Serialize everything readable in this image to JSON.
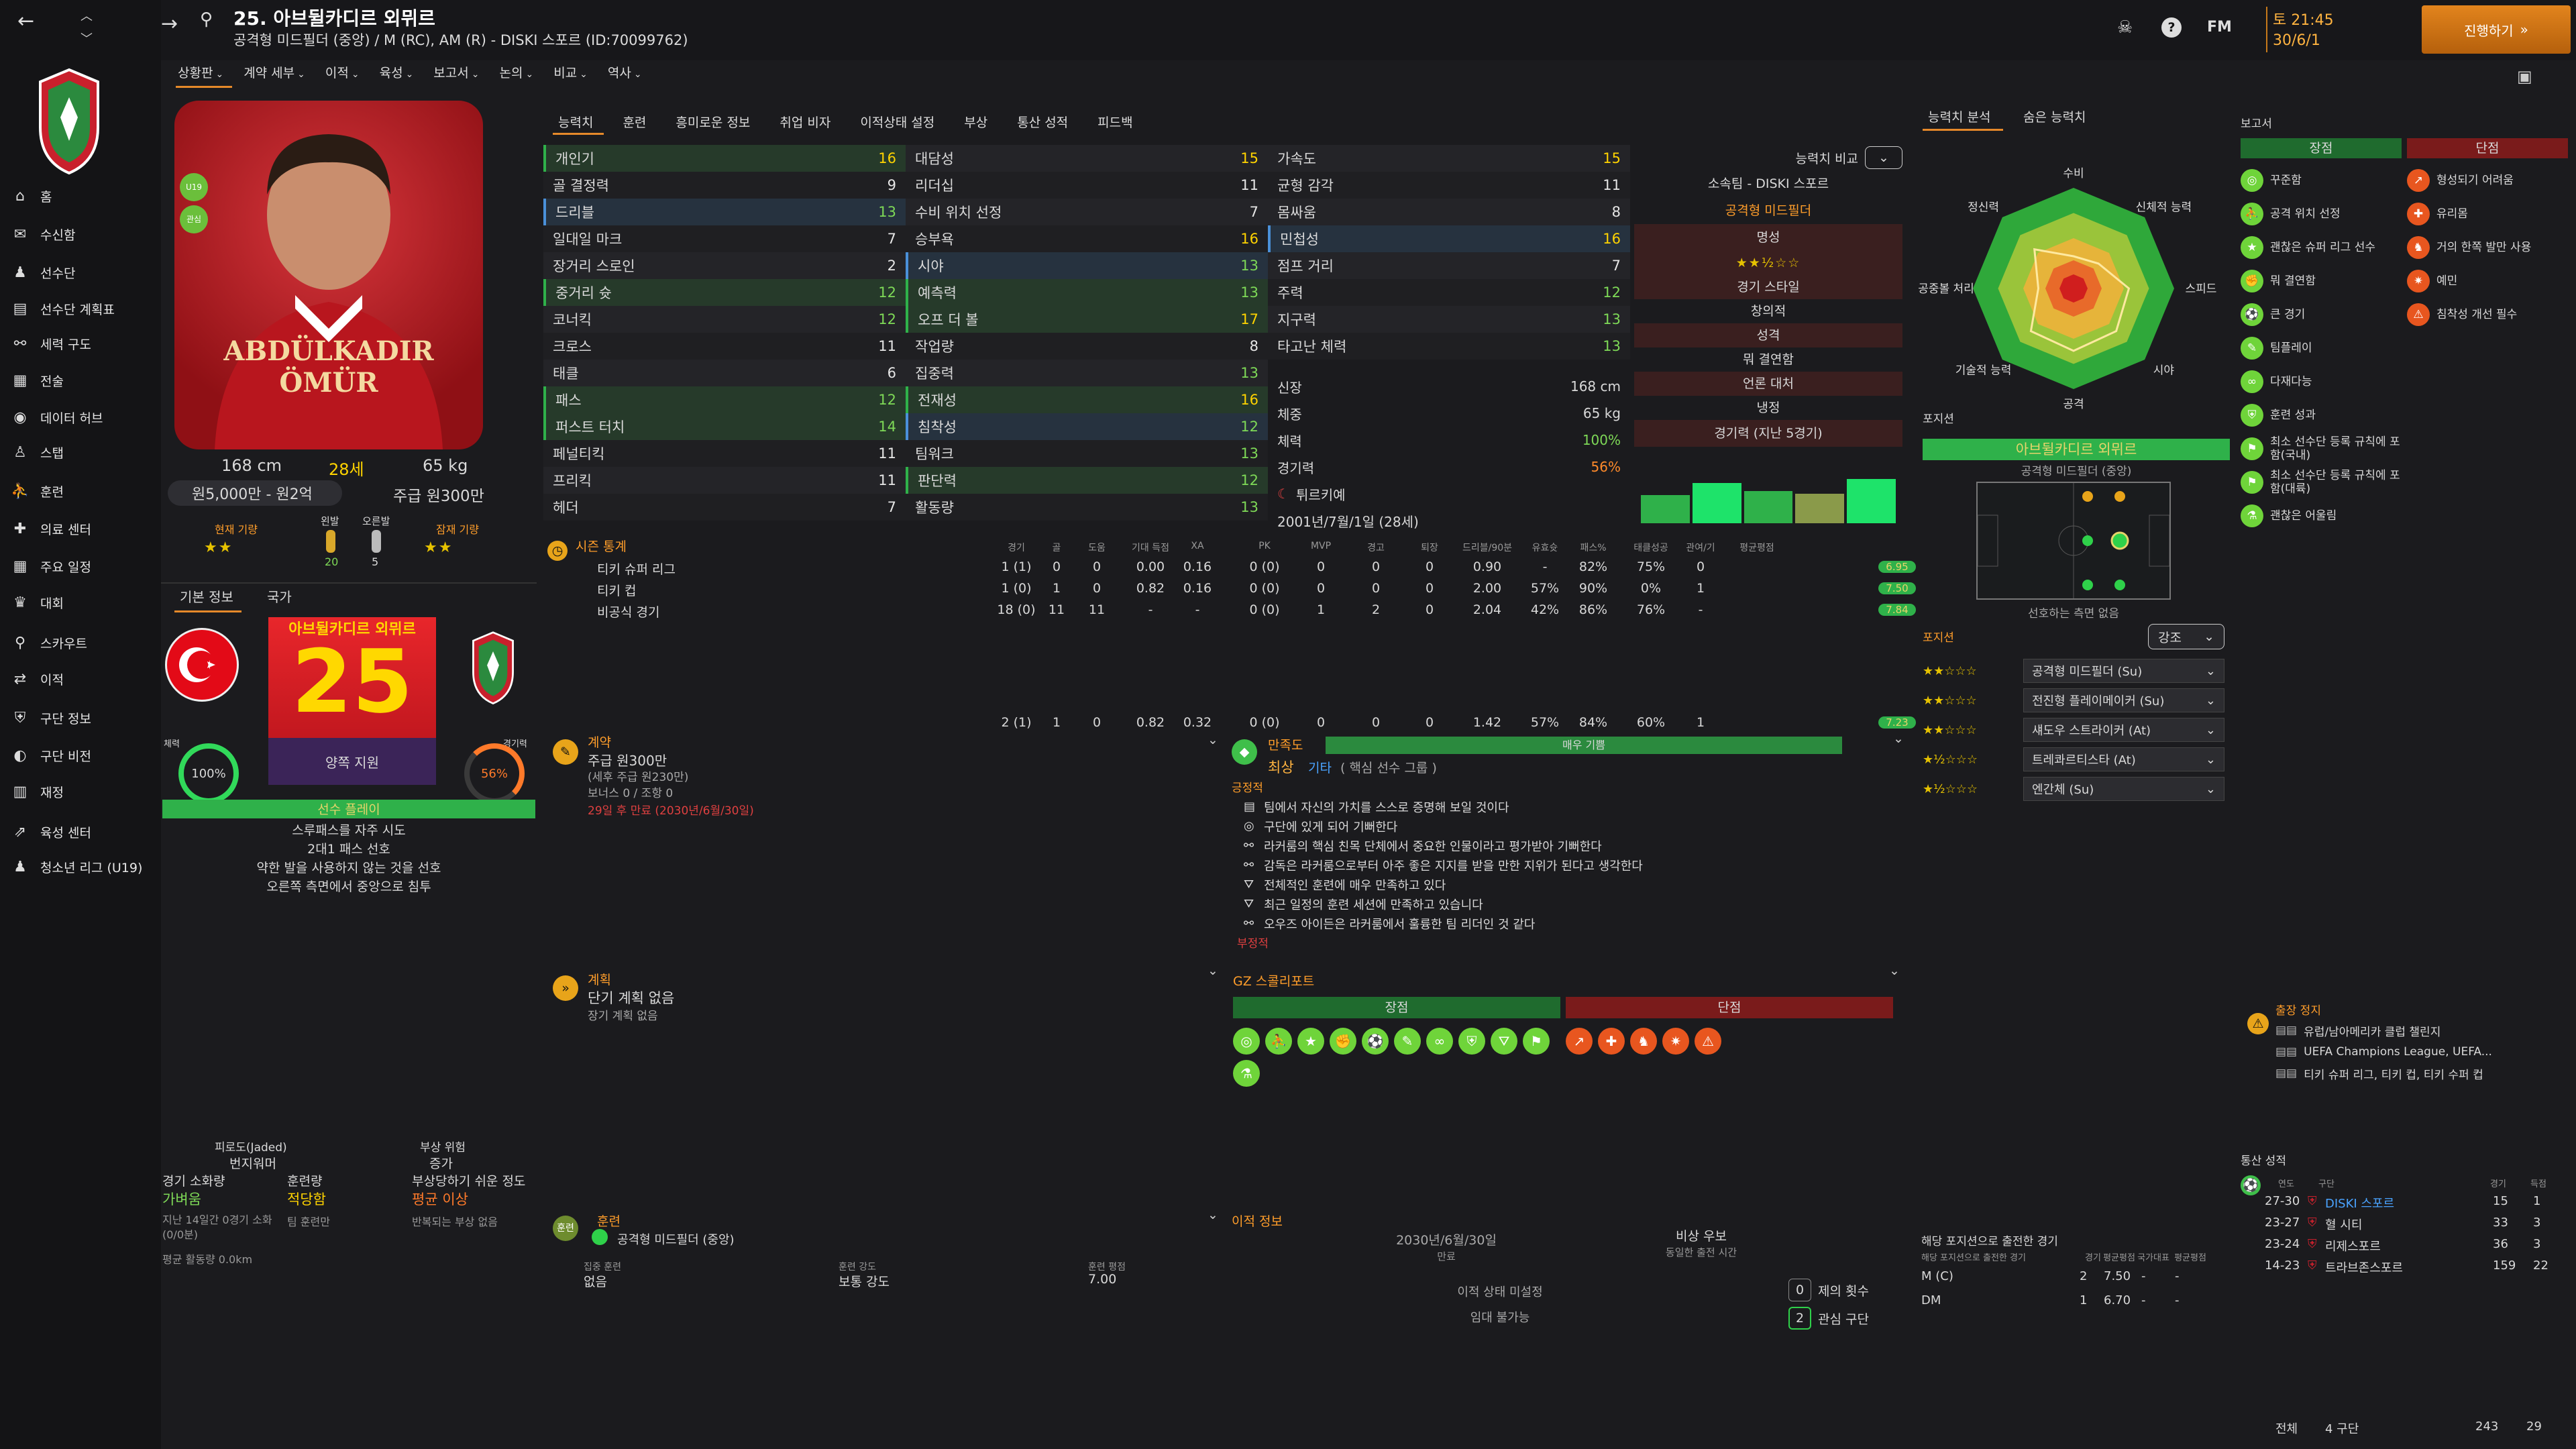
{
  "header": {
    "player_title": "25. 아브뒬카디르 외뮈르",
    "player_subtitle": "공격형 미드필더 (중앙) / M (RC), AM (R) - DISKI 스포르 (ID:70099762)",
    "date_line1": "토 21:45",
    "date_line2": "30/6/1",
    "continue_label": "진행하기",
    "fm_label": "FM"
  },
  "subnav": [
    "상황판",
    "계약 세부",
    "이적",
    "육성",
    "보고서",
    "논의",
    "비교",
    "역사"
  ],
  "nav": [
    {
      "label": "홈",
      "icon": "home-icon"
    },
    {
      "label": "수신함",
      "icon": "inbox-icon"
    },
    {
      "label": "선수단",
      "icon": "squad-icon"
    },
    {
      "label": "선수단 계획표",
      "icon": "plan-icon"
    },
    {
      "label": "세력 구도",
      "icon": "dynamics-icon"
    },
    {
      "label": "전술",
      "icon": "tactics-icon"
    },
    {
      "label": "데이터 허브",
      "icon": "data-icon"
    },
    {
      "label": "스탭",
      "icon": "staff-icon"
    },
    {
      "label": "훈련",
      "icon": "training-icon"
    },
    {
      "label": "의료 센터",
      "icon": "medical-icon"
    },
    {
      "label": "주요 일정",
      "icon": "calendar-icon"
    },
    {
      "label": "대회",
      "icon": "trophy-icon"
    },
    {
      "label": "스카우트",
      "icon": "scout-icon"
    },
    {
      "label": "이적",
      "icon": "transfer-icon"
    },
    {
      "label": "구단 정보",
      "icon": "club-icon"
    },
    {
      "label": "구단 비전",
      "icon": "vision-icon"
    },
    {
      "label": "재정",
      "icon": "finance-icon"
    },
    {
      "label": "육성 센터",
      "icon": "dev-icon"
    },
    {
      "label": "청소년 리그 (U19)",
      "icon": "youth-icon"
    }
  ],
  "profile": {
    "shirt_name": "ABDÜLKADIR ÖMÜR",
    "height": "168 cm",
    "age": "28세",
    "weight": "65 kg",
    "value": "원5,000만 - 원2억",
    "wage": "주급 원300만",
    "current_ability": "현재 기량",
    "potential_ability": "잠재 기량",
    "left_foot": "왼발",
    "right_foot": "오른발",
    "left_foot_val": "20",
    "right_foot_val": "5",
    "badge1": "U19",
    "badge2": "관심"
  },
  "info_tabs": [
    "기본 정보",
    "국가"
  ],
  "card": {
    "name": "아브뒬카디르 외뮈르",
    "number": "25",
    "role": "양쪽 지원",
    "fitness_label": "체력",
    "fitness": "100%",
    "match_label": "경기력",
    "match": "56%",
    "status": "선수 플레이",
    "traits": [
      "스루패스를 자주 시도",
      "2대1 패스 선호",
      "약한 발을 사용하지 않는 것을 선호",
      "오른쪽 측면에서 중앙으로 침투"
    ]
  },
  "left_bottom": {
    "c1_label": "피로도(Jaded)",
    "c1_value": "번지워머",
    "c2_label": "부상 위험",
    "c2_value": "증가",
    "r1": "경기 소화량",
    "r1v": "가벼움",
    "r2": "훈련량",
    "r2v": "적당함",
    "r3": "부상당하기 쉬운 정도",
    "r3v": "평균 이상",
    "n1": "지난 14일간 0경기 소화(0/0분)",
    "n2": "팀 훈련만",
    "n3": "반복되는 부상 없음",
    "n4": "평균 활동량 0.0km"
  },
  "attr_tabs": [
    "능력치",
    "훈련",
    "흥미로운 정보",
    "취업 비자",
    "이적상태 설정",
    "부상",
    "통산 성적",
    "피드백"
  ],
  "attrs_col1": [
    {
      "n": "개인기",
      "v": "16",
      "hl": "g"
    },
    {
      "n": "골 결정력",
      "v": "9"
    },
    {
      "n": "드리블",
      "v": "13",
      "hl": "b"
    },
    {
      "n": "일대일 마크",
      "v": "7"
    },
    {
      "n": "장거리 스로인",
      "v": "2"
    },
    {
      "n": "중거리 슛",
      "v": "12",
      "hl": "g"
    },
    {
      "n": "코너킥",
      "v": "12"
    },
    {
      "n": "크로스",
      "v": "11"
    },
    {
      "n": "태클",
      "v": "6"
    },
    {
      "n": "패스",
      "v": "12",
      "hl": "g"
    },
    {
      "n": "퍼스트 터치",
      "v": "14",
      "hl": "g"
    },
    {
      "n": "페널티킥",
      "v": "11"
    },
    {
      "n": "프리킥",
      "v": "11"
    },
    {
      "n": "헤더",
      "v": "7"
    }
  ],
  "attrs_col2": [
    {
      "n": "대담성",
      "v": "15"
    },
    {
      "n": "리더십",
      "v": "11"
    },
    {
      "n": "수비 위치 선정",
      "v": "7"
    },
    {
      "n": "승부욕",
      "v": "16"
    },
    {
      "n": "시야",
      "v": "13",
      "hl": "b"
    },
    {
      "n": "예측력",
      "v": "13",
      "hl": "g"
    },
    {
      "n": "오프 더 볼",
      "v": "17",
      "hl": "g"
    },
    {
      "n": "작업량",
      "v": "8"
    },
    {
      "n": "집중력",
      "v": "13"
    },
    {
      "n": "전재성",
      "v": "16",
      "hl": "g"
    },
    {
      "n": "침착성",
      "v": "12",
      "hl": "b"
    },
    {
      "n": "팀워크",
      "v": "13"
    },
    {
      "n": "판단력",
      "v": "12",
      "hl": "g"
    },
    {
      "n": "활동량",
      "v": "13"
    }
  ],
  "attrs_col3": [
    {
      "n": "가속도",
      "v": "15"
    },
    {
      "n": "균형 감각",
      "v": "11"
    },
    {
      "n": "몸싸움",
      "v": "8"
    },
    {
      "n": "민첩성",
      "v": "16",
      "hl": "b"
    },
    {
      "n": "점프 거리",
      "v": "7"
    },
    {
      "n": "주력",
      "v": "12"
    },
    {
      "n": "지구력",
      "v": "13"
    },
    {
      "n": "타고난 체력",
      "v": "13"
    }
  ],
  "bio": {
    "r1": "신장",
    "r1v": "168 cm",
    "r2": "체중",
    "r2v": "65 kg",
    "r3": "체력",
    "r3v": "100%",
    "r4": "경기력",
    "r4v": "56%",
    "nation": "튀르키예",
    "dob": "2001년/7월/1일 (28세)",
    "truncated": "..."
  },
  "compare": {
    "label": "능력치 비교",
    "club": "소속팀 - DISKI 스포르",
    "role": "공격형 미드필더",
    "fame": "명성",
    "style": "경기 스타일",
    "style_v": "창의적",
    "pers": "성격",
    "pers_v": "뭐 결연함",
    "media": "언론 대처",
    "media_v": "냉정",
    "form": "경기력 (지난 5경기)"
  },
  "season": {
    "title": "시즌 통계",
    "headers": [
      "경기",
      "골",
      "도움",
      "기대 득점",
      "XA",
      "PK",
      "MVP",
      "경고",
      "퇴장",
      "드리블/90분",
      "유효슛",
      "패스%",
      "태클성공",
      "관여/기",
      "평균평점"
    ],
    "rows": [
      {
        "comp": "티키 슈퍼 리그",
        "vals": [
          "1 (1)",
          "0",
          "0",
          "0.00",
          "0.16",
          "0 (0)",
          "0",
          "0",
          "0",
          "0.90",
          "-",
          "82%",
          "75%",
          "0"
        ],
        "rating": "6.95"
      },
      {
        "comp": "티키 컵",
        "vals": [
          "1 (0)",
          "1",
          "0",
          "0.82",
          "0.16",
          "0 (0)",
          "0",
          "0",
          "0",
          "2.00",
          "57%",
          "90%",
          "0%",
          "1"
        ],
        "rating": "7.50"
      },
      {
        "comp": "비공식 경기",
        "vals": [
          "18 (0)",
          "11",
          "11",
          "-",
          "-",
          "0 (0)",
          "1",
          "2",
          "0",
          "2.04",
          "42%",
          "86%",
          "76%",
          "-"
        ],
        "rating": "7.84"
      }
    ],
    "total": {
      "vals": [
        "2 (1)",
        "1",
        "0",
        "0.82",
        "0.32",
        "0 (0)",
        "0",
        "0",
        "0",
        "1.42",
        "57%",
        "84%",
        "60%",
        "1"
      ],
      "rating": "7.23"
    }
  },
  "contract": {
    "title": "계약",
    "wage": "주급 원300만",
    "wage_sub": "(세후 주급 원230만)",
    "bonus": "보너스 0 / 조항 0",
    "expiry": "29일 후 만료 (2030년/6월/30일)"
  },
  "happiness": {
    "title": "만족도",
    "bar_label": "매우 기쁨",
    "level": "최상",
    "role": "기타",
    "role_detail": "( 핵심 선수 그룹 )",
    "pos_label": "긍정적",
    "items": [
      "팀에서 자신의 가치를 스스로 증명해 보일 것이다",
      "구단에 있게 되어 기뻐한다",
      "라커룸의 핵심 친목 단체에서 중요한 인물이라고 평가받아 기뻐한다",
      "감독은 라커룸으로부터 아주 좋은 지지를 받을 만한 지위가 된다고 생각한다",
      "전체적인 훈련에 매우 만족하고 있다",
      "최근 일정의 훈련 세션에 만족하고 있습니다",
      "오우즈 아이든은 라커룸에서 훌륭한 팀 리더인 것 같다"
    ],
    "neg_label": "부정적"
  },
  "plans": {
    "title": "계획",
    "short": "단기 계획 없음",
    "long": "장기 계획 없음"
  },
  "scout": {
    "title": "GZ 스콜리포트",
    "pros": "장점",
    "cons": "단점"
  },
  "training": {
    "title": "훈련",
    "pos": "공격형 미드필더 (중앙)",
    "col1": "집중 훈련",
    "col1v": "없음",
    "col2": "훈련 강도",
    "col2v": "보통 강도",
    "col3": "훈련 평점",
    "col3v": "7.00"
  },
  "transfer": {
    "title": "이적 정보",
    "date": "2030년/6월/30일",
    "date_label": "만료",
    "status": "비상 우보",
    "status_sub": "동일한 출전 시간",
    "s1": "이적 상태 미설정",
    "s2": "임대 불가능",
    "offers": "제의 횟수",
    "offers_v": "0",
    "interested": "관심 구단",
    "interested_v": "2"
  },
  "ability_tabs": [
    "능력치 분석",
    "숨은 능력치"
  ],
  "radar": {
    "labels": [
      "수비",
      "신체적 능력",
      "스피드",
      "시야",
      "공격",
      "기술적 능력",
      "공중볼 처리",
      "정신력"
    ]
  },
  "position": {
    "title": "포지션",
    "name": "아브뒬카디르 외뮈르",
    "role": "공격형 미드필더 (중앙)",
    "caption": "선호하는 측면 없음",
    "roles_title": "포지션",
    "roles_btn": "강조",
    "roles": [
      {
        "stars": "★★☆☆☆",
        "r": "공격형 미드필더 (Su)"
      },
      {
        "stars": "★★☆☆☆",
        "r": "전진형 플레이메이커 (Su)"
      },
      {
        "stars": "★★☆☆☆",
        "r": "섀도우 스트라이커 (At)"
      },
      {
        "stars": "★½☆☆☆",
        "r": "트레콰르티스타 (At)"
      },
      {
        "stars": "★½☆☆☆",
        "r": "엔간체 (Su)"
      }
    ]
  },
  "pos_games": {
    "title": "해당 포지션으로 출전한 경기",
    "h": [
      "해당 포지션으로 출전한 경기",
      "경기",
      "평균평점",
      "국가대표",
      "평균평점"
    ],
    "rows": [
      {
        "p": "M (C)",
        "g": "2",
        "r": "7.50",
        "n": "-",
        "nr": "-"
      },
      {
        "p": "DM",
        "g": "1",
        "r": "6.70",
        "n": "-",
        "nr": "-"
      }
    ]
  },
  "report": {
    "title": "보고서",
    "pros": "장점",
    "cons": "단점",
    "pro_items": [
      "꾸준함",
      "공격 위치 선정",
      "괜찮은 슈퍼 리그 선수",
      "뭐 결연함",
      "큰 경기",
      "팀플레이",
      "다재다능",
      "훈련 성과",
      "최소 선수단 등록 규칙에 포함(국내)",
      "최소 선수단 등록 규칙에 포함(대륙)",
      "괜찮은 어울림"
    ],
    "con_items": [
      "형성되기 어려움",
      "유리몸",
      "거의 한쪽 발만 사용",
      "예민",
      "침착성 개선 필수"
    ]
  },
  "suspension": {
    "title": "출장 정지",
    "items": [
      "유럽/남아메리카 클럽 챌린지",
      "UEFA Champions League, UEFA...",
      "티키 슈퍼 리그, 티키 컵, 티키 수퍼 컵"
    ]
  },
  "career": {
    "title": "통산 성적",
    "h": [
      "연도",
      "구단",
      "경기",
      "득점"
    ],
    "rows": [
      {
        "y": "27-30",
        "c": "DISKI 스포르",
        "g": "15",
        "s": "1"
      },
      {
        "y": "23-27",
        "c": "혈 시티",
        "g": "33",
        "s": "3"
      },
      {
        "y": "23-24",
        "c": "리제스포르",
        "g": "36",
        "s": "3"
      },
      {
        "y": "14-23",
        "c": "트라브존스포르",
        "g": "159",
        "s": "22"
      }
    ],
    "total_l": "전체",
    "total_c": "4 구단",
    "total_g": "243",
    "total_s": "29"
  }
}
